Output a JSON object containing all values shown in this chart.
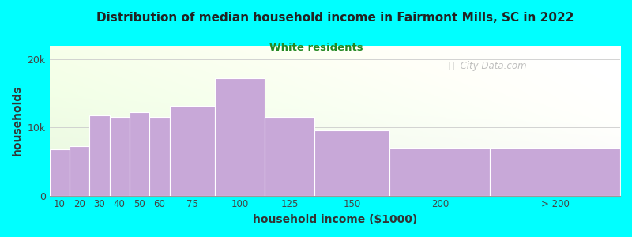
{
  "title": "Distribution of median household income in Fairmont Mills, SC in 2022",
  "subtitle": "White residents",
  "xlabel": "household income ($1000)",
  "ylabel": "households",
  "background_color": "#00FFFF",
  "plot_bg_color_left": "#e8f5e0",
  "plot_bg_color_right": "#f8f8f8",
  "bar_color": "#c8a8d8",
  "bar_edge_color": "#ffffff",
  "title_color": "#222222",
  "subtitle_color": "#228822",
  "watermark_color": "#aaaaaa",
  "bin_edges": [
    5,
    15,
    25,
    35,
    45,
    55,
    65,
    87.5,
    112.5,
    137.5,
    175,
    225,
    290
  ],
  "bin_labels": [
    "10",
    "20",
    "30",
    "40",
    "50",
    "60",
    "75",
    "100",
    "125",
    "150",
    "200",
    "> 200"
  ],
  "values": [
    6800,
    7200,
    11800,
    11500,
    12200,
    11500,
    13200,
    17200,
    11500,
    9600,
    7000,
    7000
  ],
  "ylim": [
    0,
    22000
  ],
  "yticks": [
    0,
    10000,
    20000
  ],
  "ytick_labels": [
    "0",
    "10k",
    "20k"
  ]
}
